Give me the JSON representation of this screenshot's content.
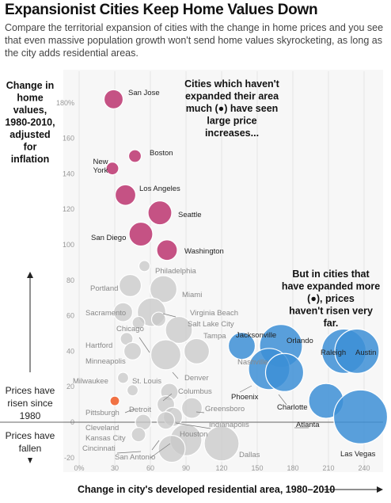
{
  "header": {
    "title": "Expansionist Cities Keep Home Values Down",
    "subtitle": "Compare the territorial expansion of cities with the change in home prices and you see that even massive population growth won't send home values skyrocketing, as long as the city adds residential areas."
  },
  "chart_data": {
    "type": "scatter",
    "title": "Expansionist Cities Keep Home Values Down",
    "xlabel": "Change in city's developed residential area, 1980–2010",
    "ylabel": "Change in home values, 1980-2010, adjusted for inflation",
    "xlim": [
      0,
      240
    ],
    "ylim": [
      -20,
      190
    ],
    "x_ticks": [
      0,
      30,
      60,
      90,
      120,
      150,
      180,
      210,
      240
    ],
    "x_tick_labels": [
      "0%",
      "30",
      "60",
      "90",
      "120",
      "150",
      "180",
      "210",
      "240"
    ],
    "y_ticks": [
      -20,
      0,
      20,
      40,
      60,
      80,
      100,
      120,
      140,
      160,
      180
    ],
    "y_tick_labels": [
      "-20",
      "0",
      "20",
      "40",
      "60",
      "80",
      "100",
      "120",
      "140",
      "160",
      "180%"
    ],
    "annotations": {
      "top": "Cities which haven't expanded their area much (●) have seen large price increases...",
      "right": "But in cities that have expanded more (●), prices haven't risen very far.",
      "risen": "Prices have risen since 1980",
      "fallen": "Prices have fallen"
    },
    "colors": {
      "large_increase": "#c2497d",
      "expanded": "#3d8fd6",
      "other": "#c8c8c8",
      "pittsburgh": "#f06a3a"
    },
    "points": [
      {
        "city": "San Jose",
        "x": 29,
        "y": 182,
        "group": "high"
      },
      {
        "city": "Boston",
        "x": 47,
        "y": 150,
        "group": "high"
      },
      {
        "city": "New York",
        "x": 28,
        "y": 143,
        "group": "high"
      },
      {
        "city": "Los Angeles",
        "x": 39,
        "y": 128,
        "group": "high"
      },
      {
        "city": "Seattle",
        "x": 68,
        "y": 118,
        "group": "high"
      },
      {
        "city": "San Diego",
        "x": 52,
        "y": 106,
        "group": "high"
      },
      {
        "city": "Washington",
        "x": 74,
        "y": 97,
        "group": "high"
      },
      {
        "city": "Philadelphia",
        "x": 55,
        "y": 88,
        "group": "other"
      },
      {
        "city": "Portland",
        "x": 43,
        "y": 77,
        "group": "other"
      },
      {
        "city": "Miami",
        "x": 71,
        "y": 75,
        "group": "other"
      },
      {
        "city": "Sacramento",
        "x": 37,
        "y": 62,
        "group": "other"
      },
      {
        "city": "Virginia Beach",
        "x": 61,
        "y": 62,
        "group": "other"
      },
      {
        "city": "Salt Lake City",
        "x": 67,
        "y": 58,
        "group": "other"
      },
      {
        "city": "Chicago",
        "x": 50,
        "y": 56,
        "group": "other"
      },
      {
        "city": "Tampa",
        "x": 84,
        "y": 52,
        "group": "other"
      },
      {
        "city": "Hartford",
        "x": 40,
        "y": 47,
        "group": "other"
      },
      {
        "city": "Jacksonville",
        "x": 137,
        "y": 43,
        "group": "expanded"
      },
      {
        "city": "Orlando",
        "x": 170,
        "y": 43,
        "group": "expanded"
      },
      {
        "city": "Raleigh",
        "x": 223,
        "y": 40,
        "group": "expanded"
      },
      {
        "city": "Austin",
        "x": 234,
        "y": 40,
        "group": "expanded"
      },
      {
        "city": "Minneapolis",
        "x": 45,
        "y": 40,
        "group": "other"
      },
      {
        "city": "Nashville",
        "x": 99,
        "y": 40,
        "group": "other"
      },
      {
        "city": "Denver",
        "x": 73,
        "y": 38,
        "group": "other"
      },
      {
        "city": "Phoenix",
        "x": 160,
        "y": 30,
        "group": "expanded"
      },
      {
        "city": "Charlotte",
        "x": 173,
        "y": 28,
        "group": "expanded"
      },
      {
        "city": "Milwaukee",
        "x": 37,
        "y": 25,
        "group": "other"
      },
      {
        "city": "St. Louis",
        "x": 45,
        "y": 18,
        "group": "other"
      },
      {
        "city": "Columbus",
        "x": 76,
        "y": 17,
        "group": "other"
      },
      {
        "city": "Pittsburgh",
        "x": 30,
        "y": 12,
        "group": "pittsburgh"
      },
      {
        "city": "Detroit",
        "x": 73,
        "y": 10,
        "group": "other"
      },
      {
        "city": "Greensboro",
        "x": 95,
        "y": 8,
        "group": "other"
      },
      {
        "city": "Indianapolis",
        "x": 79,
        "y": 3,
        "group": "other"
      },
      {
        "city": "Atlanta",
        "x": 208,
        "y": 12,
        "group": "expanded"
      },
      {
        "city": "Cleveland",
        "x": 54,
        "y": 0,
        "group": "other"
      },
      {
        "city": "Kansas City",
        "x": 73,
        "y": 1,
        "group": "other"
      },
      {
        "city": "Las Vegas",
        "x": 237,
        "y": 3,
        "group": "expanded"
      },
      {
        "city": "Cincinnati",
        "x": 50,
        "y": -7,
        "group": "other"
      },
      {
        "city": "Houston",
        "x": 90,
        "y": -10,
        "group": "other"
      },
      {
        "city": "San Antonio",
        "x": 78,
        "y": -15,
        "group": "other"
      },
      {
        "city": "Dallas",
        "x": 120,
        "y": -12,
        "group": "other"
      }
    ]
  }
}
